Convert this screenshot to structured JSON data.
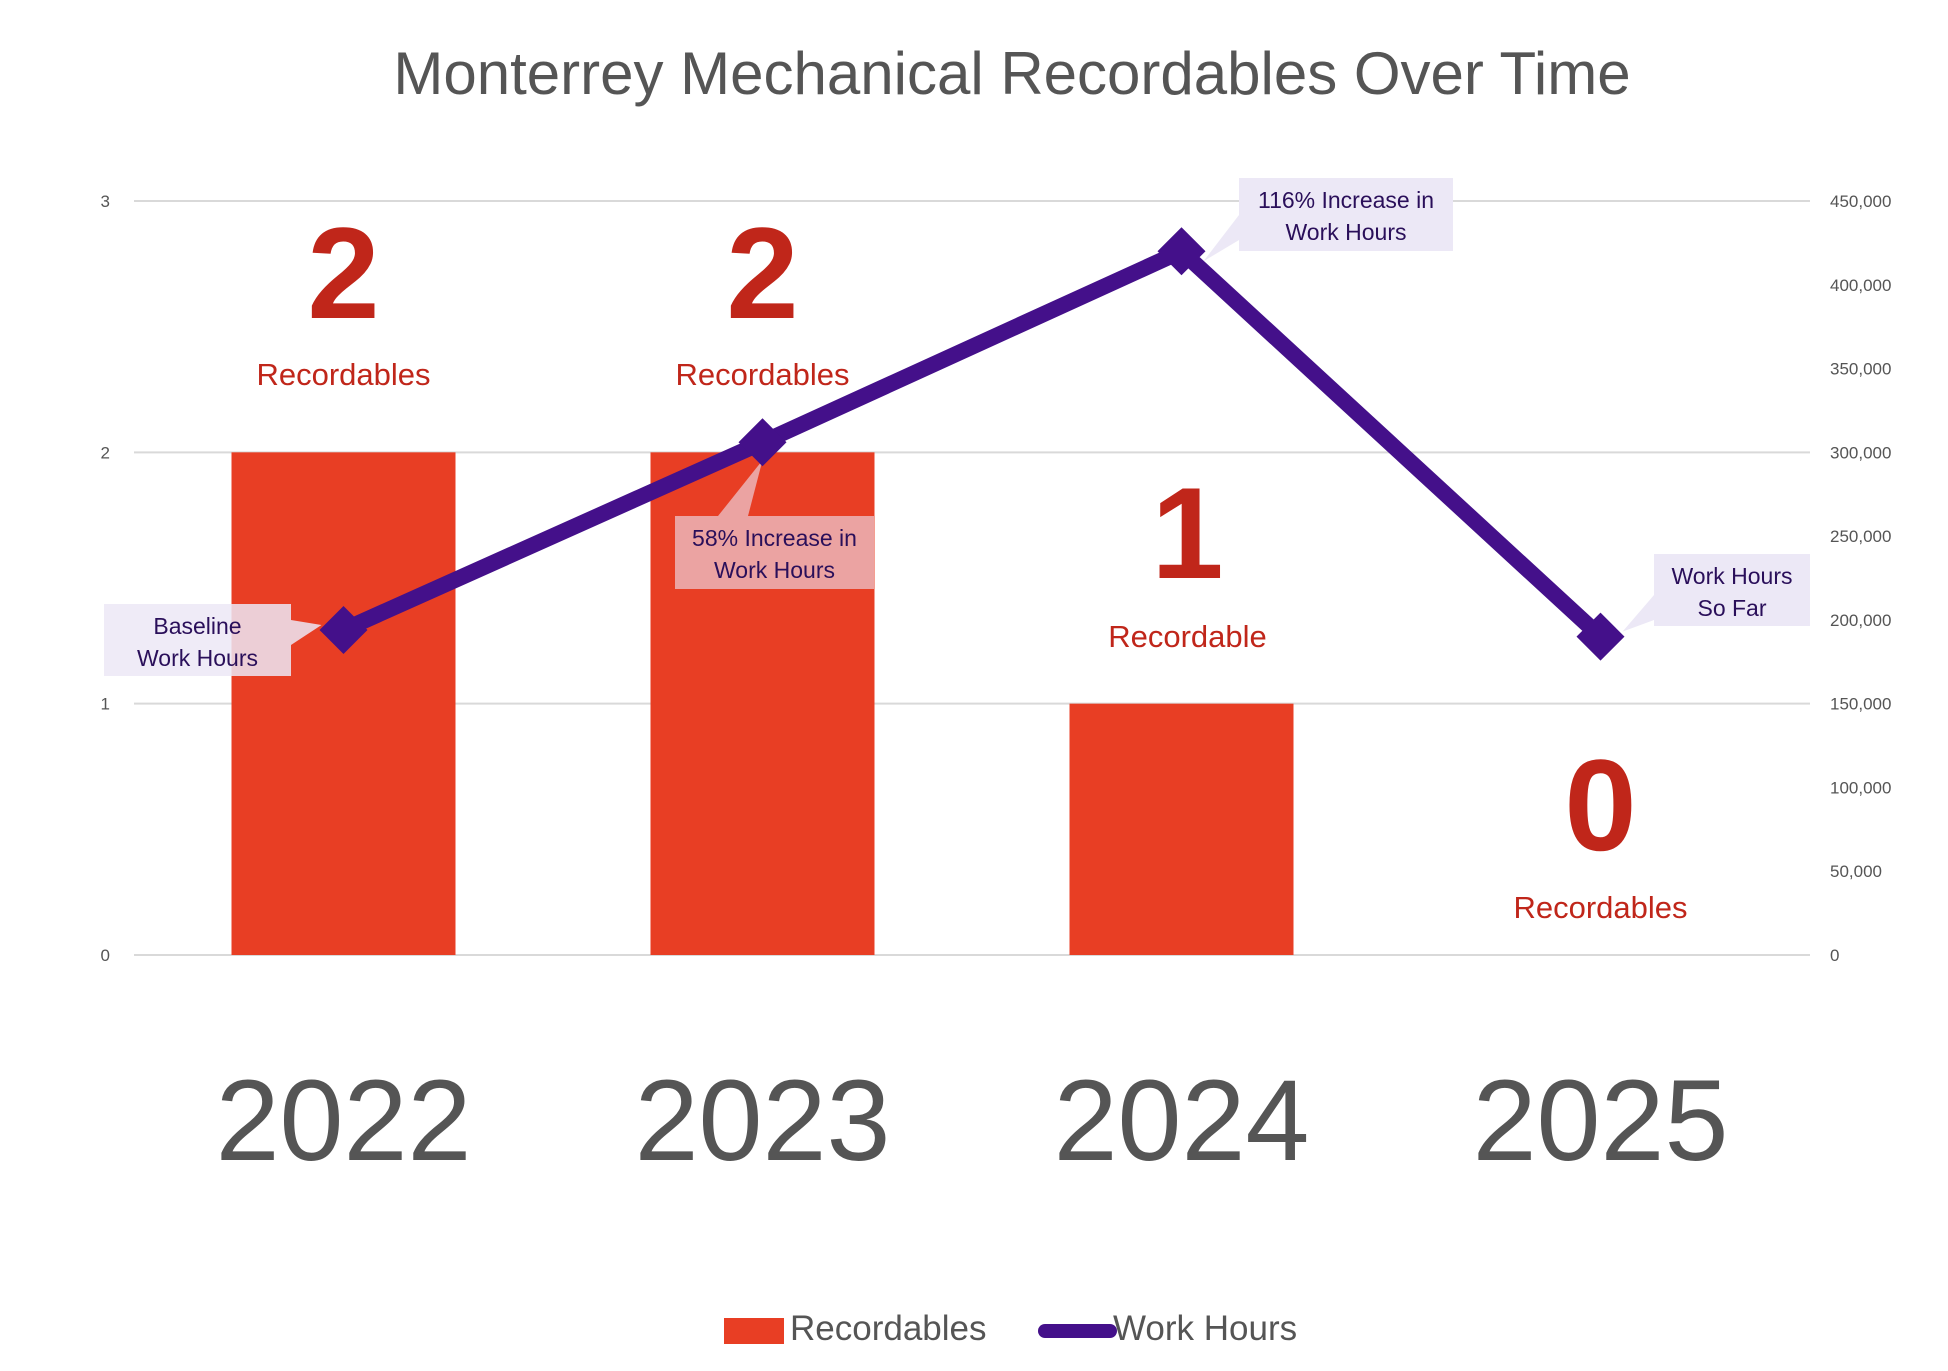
{
  "chart_data": {
    "type": "bar+line",
    "title": "Monterrey Mechanical Recordables Over Time",
    "categories": [
      "2022",
      "2023",
      "2024",
      "2025"
    ],
    "series": [
      {
        "name": "Recordables",
        "type": "bar",
        "axis": "left",
        "values": [
          2,
          2,
          1,
          0
        ],
        "color": "#E83E24"
      },
      {
        "name": "Work Hours",
        "type": "line",
        "axis": "right",
        "values": [
          194000,
          306000,
          420000,
          190000
        ],
        "color": "#44108A"
      }
    ],
    "left_axis": {
      "ylim": [
        0,
        3
      ],
      "ticks": [
        "0",
        "1",
        "2",
        "3"
      ]
    },
    "right_axis": {
      "ylim": [
        0,
        450000
      ],
      "ticks": [
        "0",
        "50,000",
        "100,000",
        "150,000",
        "200,000",
        "250,000",
        "300,000",
        "350,000",
        "400,000",
        "450,000"
      ]
    },
    "grid": true,
    "legend": {
      "placement": "bottom",
      "entries": [
        "Recordables",
        "Work Hours"
      ]
    },
    "bar_labels": [
      {
        "number": "2",
        "text": "Recordables"
      },
      {
        "number": "2",
        "text": "Recordables"
      },
      {
        "number": "1",
        "text": "Recordable"
      },
      {
        "number": "0",
        "text": "Recordables"
      }
    ],
    "annotations": [
      {
        "lines": [
          "Baseline",
          "Work Hours"
        ]
      },
      {
        "lines": [
          "58% Increase in",
          "Work Hours"
        ]
      },
      {
        "lines": [
          "116% Increase in",
          "Work Hours"
        ]
      },
      {
        "lines": [
          "Work Hours",
          "So Far"
        ]
      }
    ]
  },
  "colors": {
    "label_red": "#C0261A",
    "axis_text": "#555555",
    "grid": "#D9D9D9",
    "callout_bg": "#ECE8F6",
    "callout_text": "#2A0F5A"
  }
}
